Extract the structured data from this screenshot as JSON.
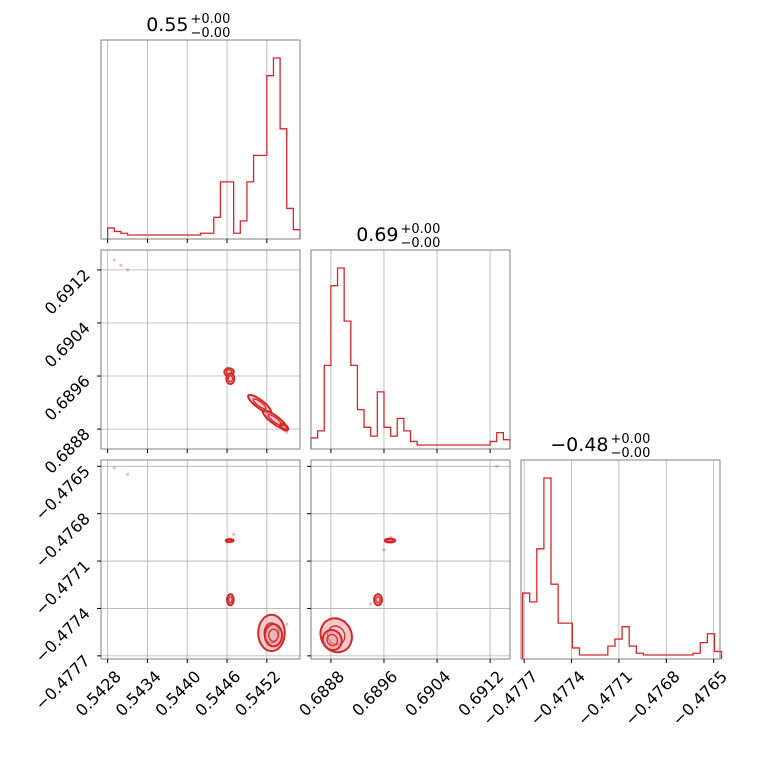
{
  "chart_data": {
    "type": "corner",
    "color": "#d62728",
    "grid": true,
    "parameters": [
      {
        "title": {
          "value": "0.55",
          "upper": "+0.00",
          "lower": "−0.00"
        },
        "range": [
          0.5427,
          0.5457
        ],
        "ticks": [
          0.5428,
          0.5434,
          0.544,
          0.5446,
          0.5452
        ],
        "tick_labels": [
          "0.5428",
          "0.5434",
          "0.5440",
          "0.5446",
          "0.5452"
        ],
        "histogram": {
          "bins": [
            0.5428,
            0.5429,
            0.543,
            0.5431,
            0.5432,
            0.5433,
            0.5434,
            0.5435,
            0.5436,
            0.5437,
            0.5438,
            0.5439,
            0.544,
            0.5441,
            0.5442,
            0.5443,
            0.5444,
            0.5445,
            0.5446,
            0.5447,
            0.5448,
            0.5449,
            0.545,
            0.5451,
            0.5452,
            0.5453,
            0.5454,
            0.5455,
            0.5456
          ],
          "counts": [
            0.04,
            0.02,
            0.01,
            0,
            0,
            0,
            0,
            0,
            0,
            0,
            0,
            0,
            0,
            0,
            0.01,
            0.01,
            0.1,
            0.3,
            0.3,
            0.01,
            0.08,
            0.3,
            0.45,
            0.45,
            0.9,
            1,
            0.6,
            0.15,
            0.03
          ]
        }
      },
      {
        "title": {
          "value": "0.69",
          "upper": "+0.00",
          "lower": "−0.00"
        },
        "range": [
          0.6885,
          0.6915
        ],
        "ticks": [
          0.6888,
          0.6896,
          0.6904,
          0.6912
        ],
        "tick_labels": [
          "0.6888",
          "0.6896",
          "0.6904",
          "0.6912"
        ],
        "histogram": {
          "bins": [
            0.6885,
            0.6886,
            0.6887,
            0.6888,
            0.6889,
            0.689,
            0.6891,
            0.6892,
            0.6893,
            0.6894,
            0.6895,
            0.6896,
            0.6897,
            0.6898,
            0.6899,
            0.69,
            0.6901,
            0.6902,
            0.6903,
            0.6904,
            0.6905,
            0.6906,
            0.6907,
            0.6908,
            0.6909,
            0.691,
            0.6911,
            0.6912,
            0.6913,
            0.6914
          ],
          "counts": [
            0.04,
            0.08,
            0.45,
            0.9,
            1,
            0.7,
            0.45,
            0.2,
            0.1,
            0.05,
            0.3,
            0.1,
            0.05,
            0.15,
            0.08,
            0.02,
            0,
            0,
            0,
            0,
            0,
            0,
            0,
            0,
            0,
            0,
            0,
            0.02,
            0.07,
            0.03
          ]
        }
      },
      {
        "title": {
          "value": "−0.48",
          "upper": "+0.00",
          "lower": "−0.00"
        },
        "range": [
          -0.47772,
          -0.47646
        ],
        "ticks": [
          -0.4777,
          -0.4774,
          -0.4771,
          -0.4768,
          -0.4765
        ],
        "tick_labels": [
          "−0.4777",
          "−0.4774",
          "−0.4771",
          "−0.4768",
          "−0.4765"
        ],
        "histogram": {
          "bins": [
            -0.47771,
            -0.477665,
            -0.47762,
            -0.477575,
            -0.47753,
            -0.477485,
            -0.47744,
            -0.477395,
            -0.47735,
            -0.477305,
            -0.47726,
            -0.477215,
            -0.47717,
            -0.477125,
            -0.47708,
            -0.477035,
            -0.47699,
            -0.476945,
            -0.4769,
            -0.476855,
            -0.47681,
            -0.476765,
            -0.47672,
            -0.476675,
            -0.47663,
            -0.476585,
            -0.47654,
            -0.476495
          ],
          "counts": [
            0.35,
            0.3,
            0.6,
            1,
            0.4,
            0.18,
            0.18,
            0.04,
            0,
            0,
            0,
            0,
            0.05,
            0.09,
            0.16,
            0.05,
            0.01,
            0,
            0,
            0,
            0,
            0,
            0,
            0,
            0.01,
            0.07,
            0.12,
            0.02
          ]
        }
      }
    ],
    "scatter": {
      "p1p0": [
        {
          "x": 0.5429,
          "y": 0.69135
        },
        {
          "x": 0.543,
          "y": 0.69127
        },
        {
          "x": 0.5431,
          "y": 0.6912
        },
        {
          "x": 0.5446,
          "y": 0.68972
        },
        {
          "x": 0.5447,
          "y": 0.68968
        },
        {
          "x": 0.5446,
          "y": 0.68958
        },
        {
          "x": 0.545,
          "y": 0.68918
        },
        {
          "x": 0.5452,
          "y": 0.689
        },
        {
          "x": 0.5453,
          "y": 0.68892
        },
        {
          "x": 0.5455,
          "y": 0.68875
        }
      ],
      "p2p0": [
        {
          "x": 0.5429,
          "y": -0.47651
        },
        {
          "x": 0.5431,
          "y": -0.47655
        },
        {
          "x": 0.5446,
          "y": -0.47698
        },
        {
          "x": 0.5447,
          "y": -0.47693
        },
        {
          "x": 0.5446,
          "y": -0.47734
        },
        {
          "x": 0.5452,
          "y": -0.47755
        },
        {
          "x": 0.5454,
          "y": -0.47758
        },
        {
          "x": 0.5455,
          "y": -0.4775
        }
      ],
      "p2p1": [
        {
          "x": 0.6913,
          "y": -0.4765
        },
        {
          "x": 0.6897,
          "y": -0.47695
        },
        {
          "x": 0.6896,
          "y": -0.47703
        },
        {
          "x": 0.6894,
          "y": -0.47737
        },
        {
          "x": 0.6888,
          "y": -0.47755
        },
        {
          "x": 0.689,
          "y": -0.47748
        }
      ]
    },
    "contours": {
      "p1p0": [
        {
          "cx": 0.54463,
          "cy": 0.68966,
          "rx": 7e-05,
          "ry": 6e-05,
          "rot": 0
        },
        {
          "cx": 0.54465,
          "cy": 0.68956,
          "rx": 6e-05,
          "ry": 8e-05,
          "rot": 0
        },
        {
          "cx": 0.54509,
          "cy": 0.68918,
          "rx": 0.00021,
          "ry": 6e-05,
          "rot": 37
        },
        {
          "cx": 0.54532,
          "cy": 0.68894,
          "rx": 0.00022,
          "ry": 6e-05,
          "rot": 37
        },
        {
          "cx": 0.54546,
          "cy": 0.68883,
          "rx": 7e-05,
          "ry": 4e-05,
          "rot": 37
        }
      ],
      "p2p0": [
        {
          "cx": 0.54464,
          "cy": -0.47697,
          "rx": 6e-05,
          "ry": 9e-06,
          "rot": 0
        },
        {
          "cx": 0.54465,
          "cy": -0.477345,
          "rx": 5e-05,
          "ry": 3.5e-05,
          "rot": 0
        },
        {
          "cx": 0.54527,
          "cy": -0.477555,
          "rx": 0.0002,
          "ry": 0.000115,
          "rot": 0
        },
        {
          "cx": 0.5453,
          "cy": -0.47757,
          "rx": 0.00013,
          "ry": 7e-05,
          "rot": 0
        }
      ],
      "p2p1": [
        {
          "cx": 0.68969,
          "cy": -0.47697,
          "rx": 8e-05,
          "ry": 1.2e-05,
          "rot": 0
        },
        {
          "cx": 0.68951,
          "cy": -0.477345,
          "rx": 6e-05,
          "ry": 3.5e-05,
          "rot": 0
        },
        {
          "cx": 0.68888,
          "cy": -0.47757,
          "rx": 0.00023,
          "ry": 0.00011,
          "rot": -27
        },
        {
          "cx": 0.68882,
          "cy": -0.4776,
          "rx": 0.00014,
          "ry": 6.5e-05,
          "rot": -27
        }
      ]
    }
  }
}
